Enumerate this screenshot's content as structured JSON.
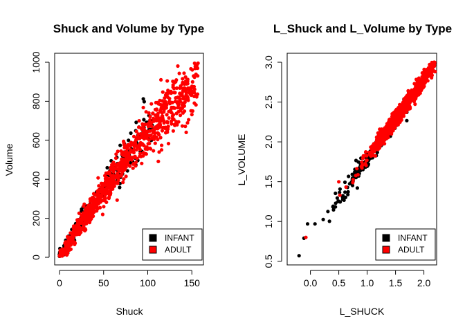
{
  "chart_data": [
    {
      "type": "scatter",
      "title": "Shuck and Volume by Type",
      "xlabel": "Shuck",
      "ylabel": "Volume",
      "xlim": [
        0,
        160
      ],
      "ylim": [
        0,
        1000
      ],
      "xticks": [
        0,
        50,
        100,
        150
      ],
      "yticks": [
        0,
        200,
        400,
        600,
        800,
        1000
      ],
      "legend": {
        "position": "bottom-right",
        "entries": [
          "INFANT",
          "ADULT"
        ]
      },
      "series": [
        {
          "name": "INFANT",
          "color": "#000000",
          "trend": {
            "x_max": 105,
            "slope": 7.6,
            "noise": 60
          }
        },
        {
          "name": "ADULT",
          "color": "#ff0000",
          "trend": {
            "x_max": 157,
            "slope": 7.4,
            "noise": 80
          }
        }
      ],
      "highlight_points": [
        {
          "series": "ADULT",
          "x": 157,
          "y": 995
        },
        {
          "series": "ADULT",
          "x": 115,
          "y": 910
        },
        {
          "series": "INFANT",
          "x": 95,
          "y": 812
        },
        {
          "series": "ADULT",
          "x": 147,
          "y": 845
        },
        {
          "series": "ADULT",
          "x": 140,
          "y": 740
        }
      ]
    },
    {
      "type": "scatter",
      "title": "L_Shuck and L_Volume by Type",
      "xlabel": "L_SHUCK",
      "ylabel": "L_VOLUME",
      "xlim": [
        -0.3,
        2.2
      ],
      "ylim": [
        0.55,
        3.0
      ],
      "xticks": [
        0.0,
        0.5,
        1.0,
        1.5,
        2.0
      ],
      "xtick_labels": [
        "0.0",
        "0.5",
        "1.0",
        "1.5",
        "2.0"
      ],
      "yticks": [
        0.5,
        1.0,
        1.5,
        2.0,
        2.5,
        3.0
      ],
      "ytick_labels": [
        "0.5",
        "1.0",
        "1.5",
        "2.0",
        "2.5",
        "3.0"
      ],
      "legend": {
        "position": "bottom-right",
        "entries": [
          "INFANT",
          "ADULT"
        ]
      },
      "series": [
        {
          "name": "INFANT",
          "color": "#000000",
          "trend": {
            "x_min": -0.2,
            "x_max": 1.8,
            "intercept": 0.78,
            "slope": 1.0,
            "noise": 0.06
          }
        },
        {
          "name": "ADULT",
          "color": "#ff0000",
          "trend": {
            "x_min": 0.4,
            "x_max": 2.2,
            "intercept": 0.82,
            "slope": 0.98,
            "noise": 0.05
          }
        }
      ],
      "highlight_points": [
        {
          "series": "INFANT",
          "x": -0.2,
          "y": 0.57
        },
        {
          "series": "INFANT",
          "x": -0.05,
          "y": 0.97
        },
        {
          "series": "ADULT",
          "x": -0.08,
          "y": 0.8
        },
        {
          "series": "INFANT",
          "x": 0.08,
          "y": 0.97
        },
        {
          "series": "ADULT",
          "x": 0.52,
          "y": 1.33
        },
        {
          "series": "ADULT",
          "x": 2.18,
          "y": 3.0
        }
      ]
    }
  ]
}
